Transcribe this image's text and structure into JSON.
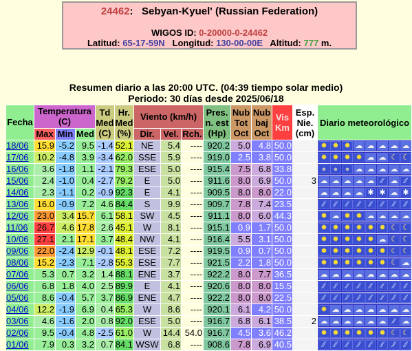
{
  "header": {
    "station_id": "24462",
    "station_name": "Sebyan-Kyuel' (Russian Federation)",
    "wigos_label": "WIGOS ID:",
    "wigos_id": "0-20000-0-24462",
    "lat_label": "Latitud:",
    "lat": "65-17-59N",
    "lon_label": "Longitud:",
    "lon": "130-00-00E",
    "alt_label": "Altitud:",
    "alt": "777",
    "alt_unit": "m."
  },
  "summary": {
    "line1": "Resumen diario a las 20:00 UTC. (04:39 tiempo solar medio)",
    "line2": "Periodo: 30 días desde 2025/06/18"
  },
  "columns": {
    "fecha": "Fecha",
    "temperatura": "Temperatura (C)",
    "max": "Max",
    "min": "Min",
    "med": "Med",
    "td": "Td Med (C)",
    "hr": "Hr. Med (%)",
    "viento": "Viento (km/h)",
    "dir": "Dir.",
    "vel": "Vel.",
    "rch": "Rch.",
    "pres": "Pres. n. est (Hp)",
    "nub_tot": "Nub Tot Oct",
    "nub_baj": "Nub baj Oct",
    "vis": "Vis Km",
    "esp": "Esp. Nie. (cm)",
    "diario": "Diario meteorológico"
  },
  "rows": [
    {
      "fecha": "18/06",
      "max": "15.9",
      "min": "-5.2",
      "med": "9.5",
      "td": "-1.4",
      "hr": "52.1",
      "dir": "NE",
      "vel": "5.4",
      "rch": "----",
      "pres": "920.2",
      "nubt": "5.0",
      "nubb": "4.8",
      "vis": "50.0",
      "esp": "",
      "icons": [
        "sun",
        "sun",
        "sun",
        "cloud",
        "cloud",
        "cloud",
        "cloud",
        "cloud"
      ]
    },
    {
      "fecha": "17/06",
      "max": "10.2",
      "min": "-4.8",
      "med": "3.9",
      "td": "-3.4",
      "hr": "62.0",
      "dir": "SSE",
      "vel": "5.9",
      "rch": "----",
      "pres": "919.0",
      "nubt": "2.5",
      "nubb": "3.8",
      "vis": "50.0",
      "esp": "",
      "icons": [
        "sun",
        "sun",
        "sun",
        "sun",
        "cloud",
        "cloud",
        "moon",
        "moon"
      ]
    },
    {
      "fecha": "16/06",
      "max": "3.6",
      "min": "-1.8",
      "med": "1.1",
      "td": "-2.1",
      "hr": "79.3",
      "dir": "ESE",
      "vel": "5.0",
      "rch": "----",
      "pres": "915.4",
      "nubt": "7.5",
      "nubb": "6.8",
      "vis": "33.8",
      "esp": "",
      "icons": [
        "dot",
        "dot",
        "dot",
        "cloud",
        "cloud",
        "cloud",
        "cloud",
        "cloud"
      ]
    },
    {
      "fecha": "15/06",
      "max": "2.4",
      "min": "-1.0",
      "med": "0.4",
      "td": "-2.7",
      "hr": "79.2",
      "dir": "E",
      "vel": "5.0",
      "rch": "----",
      "pres": "911.6",
      "nubt": "8.0",
      "nubb": "6.9",
      "vis": "50.0",
      "esp": "3",
      "icons": [
        "cloud",
        "cloud",
        "cloud",
        "cloud",
        "cloud",
        "rain",
        "cloud",
        "rain"
      ]
    },
    {
      "fecha": "14/06",
      "max": "2.3",
      "min": "-1.1",
      "med": "0.2",
      "td": "-0.9",
      "hr": "92.3",
      "dir": "E",
      "vel": "4.1",
      "rch": "----",
      "pres": "909.5",
      "nubt": "8.0",
      "nubb": "8.0",
      "vis": "22.0",
      "esp": "",
      "icons": [
        "cloud",
        "cloud",
        "cloud",
        "cloud",
        "snow",
        "snow",
        "cloud",
        "snow"
      ]
    },
    {
      "fecha": "13/06",
      "max": "16.0",
      "min": "-0.9",
      "med": "7.2",
      "td": "4.6",
      "hr": "84.4",
      "dir": "S",
      "vel": "9.9",
      "rch": "----",
      "pres": "909.7",
      "nubt": "7.8",
      "nubb": "7.4",
      "vis": "23.5",
      "esp": "",
      "icons": [
        "rain",
        "rain",
        "rain",
        "rain",
        "rain",
        "rain",
        "rain",
        "rain"
      ]
    },
    {
      "fecha": "12/06",
      "max": "23.0",
      "min": "3.4",
      "med": "15.7",
      "td": "6.1",
      "hr": "58.1",
      "dir": "SW",
      "vel": "4.5",
      "rch": "----",
      "pres": "911.1",
      "nubt": "8.0",
      "nubb": "6.0",
      "vis": "44.3",
      "esp": "",
      "icons": [
        "sun",
        "cloud",
        "sun",
        "sun",
        "cloud",
        "cloud",
        "cloud",
        "cloud"
      ]
    },
    {
      "fecha": "11/06",
      "max": "26.7",
      "min": "4.6",
      "med": "17.8",
      "td": "2.6",
      "hr": "45.1",
      "dir": "W",
      "vel": "8.1",
      "rch": "----",
      "pres": "915.1",
      "nubt": "0.9",
      "nubb": "1.7",
      "vis": "50.0",
      "esp": "",
      "icons": [
        "sun",
        "sun",
        "sun",
        "sun",
        "sun",
        "sun",
        "moon",
        "moon"
      ]
    },
    {
      "fecha": "10/06",
      "max": "27.1",
      "min": "2.1",
      "med": "17.1",
      "td": "3.7",
      "hr": "48.4",
      "dir": "NW",
      "vel": "4.1",
      "rch": "----",
      "pres": "916.4",
      "nubt": "5.5",
      "nubb": "3.1",
      "vis": "50.0",
      "esp": "",
      "icons": [
        "sun",
        "sun",
        "sun",
        "sun",
        "sun",
        "cloud",
        "moon",
        "moon"
      ]
    },
    {
      "fecha": "09/06",
      "max": "22.0",
      "min": "-2.4",
      "med": "12.9",
      "td": "-0.1",
      "hr": "48.1",
      "dir": "ESE",
      "vel": "7.2",
      "rch": "----",
      "pres": "919.5",
      "nubt": "0.9",
      "nubb": "0.7",
      "vis": "50.0",
      "esp": "",
      "icons": [
        "sun",
        "sun",
        "sun",
        "sun",
        "sun",
        "sun",
        "moon",
        "moon"
      ]
    },
    {
      "fecha": "08/06",
      "max": "15.2",
      "min": "-2.3",
      "med": "7.1",
      "td": "-2.8",
      "hr": "55.3",
      "dir": "ESE",
      "vel": "7.7",
      "rch": "----",
      "pres": "921.5",
      "nubt": "2.2",
      "nubb": "1.8",
      "vis": "50.0",
      "esp": "",
      "icons": [
        "sun",
        "sun",
        "sun",
        "sun",
        "sun",
        "sun",
        "moon",
        "cloud"
      ]
    },
    {
      "fecha": "07/06",
      "max": "5.3",
      "min": "0.7",
      "med": "3.2",
      "td": "1.4",
      "hr": "88.1",
      "dir": "ENE",
      "vel": "3.7",
      "rch": "----",
      "pres": "922.2",
      "nubt": "8.0",
      "nubb": "7.7",
      "vis": "36.5",
      "esp": "",
      "icons": [
        "cloud",
        "cloud",
        "cloud",
        "cloud",
        "cloud",
        "cloud",
        "cloud",
        "cloud"
      ]
    },
    {
      "fecha": "06/06",
      "max": "6.8",
      "min": "1.8",
      "med": "4.0",
      "td": "2.5",
      "hr": "89.9",
      "dir": "E",
      "vel": "4.1",
      "rch": "----",
      "pres": "920.6",
      "nubt": "8.0",
      "nubb": "8.0",
      "vis": "15.5",
      "esp": "",
      "icons": [
        "rain",
        "rain",
        "rain",
        "rain",
        "rain",
        "rain",
        "rain",
        "rain"
      ]
    },
    {
      "fecha": "05/06",
      "max": "8.6",
      "min": "-0.4",
      "med": "5.7",
      "td": "3.7",
      "hr": "86.9",
      "dir": "ENE",
      "vel": "4.7",
      "rch": "----",
      "pres": "922.2",
      "nubt": "8.0",
      "nubb": "8.0",
      "vis": "22.5",
      "esp": "",
      "icons": [
        "rain",
        "rain",
        "rain",
        "rain",
        "rain",
        "rain",
        "rain",
        "rain"
      ]
    },
    {
      "fecha": "04/06",
      "max": "12.2",
      "min": "-1.9",
      "med": "6.9",
      "td": "0.4",
      "hr": "65.3",
      "dir": "W",
      "vel": "8.6",
      "rch": "----",
      "pres": "920.1",
      "nubt": "6.1",
      "nubb": "4.2",
      "vis": "50.0",
      "esp": "",
      "icons": [
        "sun",
        "cloud",
        "cloud",
        "cloud",
        "cloud",
        "cloud",
        "cloud",
        "cloud"
      ]
    },
    {
      "fecha": "03/06",
      "max": "4.6",
      "min": "-1.6",
      "med": "2.0",
      "td": "0.8",
      "hr": "92.0",
      "dir": "ESE",
      "vel": "5.0",
      "rch": "----",
      "pres": "916.7",
      "nubt": "6.8",
      "nubb": "6.1",
      "vis": "38.5",
      "esp": "2",
      "icons": [
        "cloud",
        "cloud",
        "cloud",
        "cloud",
        "cloud",
        "cloud",
        "rain",
        "cloud"
      ]
    },
    {
      "fecha": "02/06",
      "max": "9.5",
      "min": "-0.4",
      "med": "4.8",
      "td": "-2.5",
      "hr": "61.0",
      "dir": "W",
      "vel": "14.4",
      "rch": "54.0",
      "pres": "916.7",
      "nubt": "4.5",
      "nubb": "3.6",
      "vis": "46.2",
      "esp": "",
      "icons": [
        "sun",
        "sun",
        "sun",
        "sun",
        "sun",
        "sun",
        "moon",
        "moon"
      ]
    },
    {
      "fecha": "01/06",
      "max": "7.9",
      "min": "0.3",
      "med": "3.2",
      "td": "0.7",
      "hr": "84.1",
      "dir": "WSW",
      "vel": "6.8",
      "rch": "----",
      "pres": "908.6",
      "nubt": "7.8",
      "nubb": "6.9",
      "vis": "40.5",
      "esp": "",
      "icons": [
        "rain",
        "rain",
        "rain",
        "rain",
        "rain",
        "rain",
        "rain",
        "rain"
      ]
    }
  ],
  "icon_glyphs": {
    "sun": "✹",
    "cloud": "☁",
    "moon": "☾",
    "rain": "⁄⁄",
    "fog": "≡",
    "snow": "✱",
    "dot": "●"
  }
}
